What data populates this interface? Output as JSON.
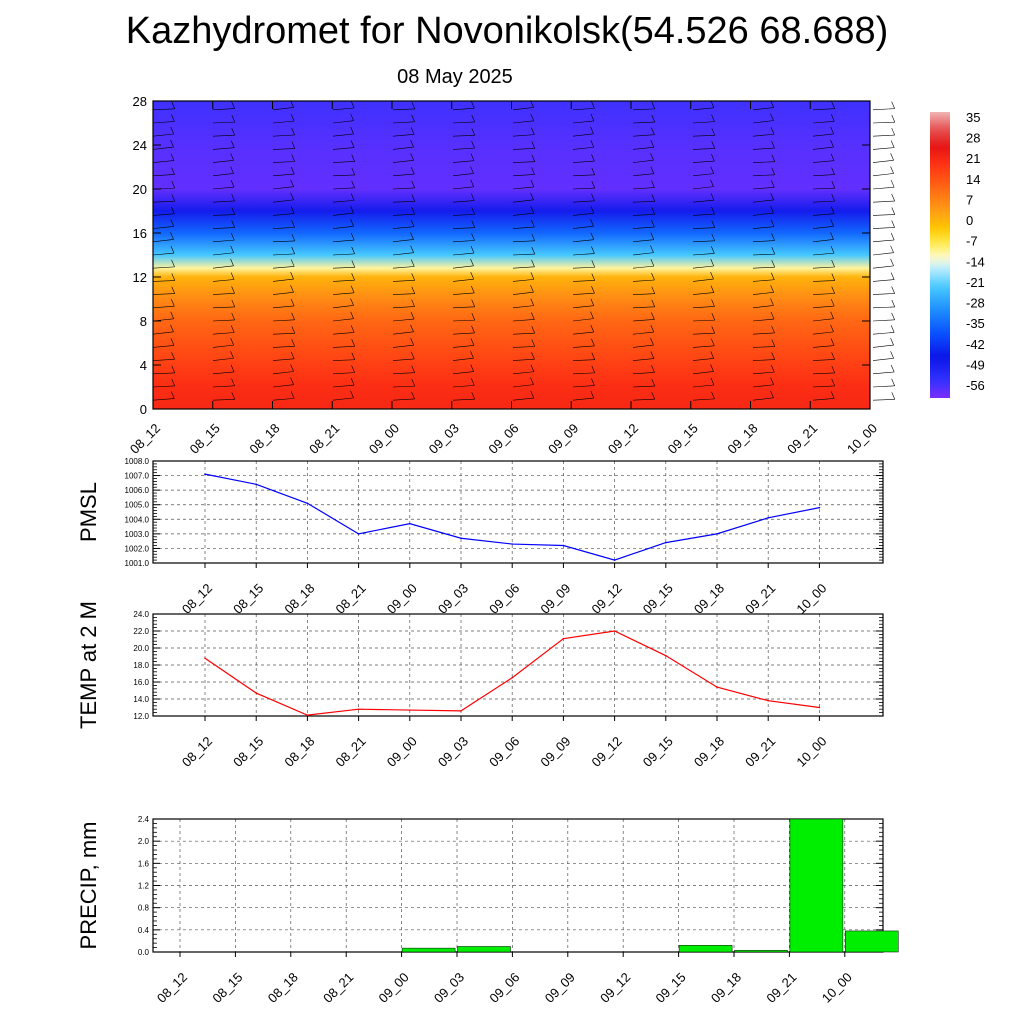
{
  "title": "Kazhydromet for Novonikolsk(54.526 68.688)",
  "subtitle": "08 May 2025",
  "chart_data": [
    {
      "type": "heatmap",
      "name": "cross-section",
      "x_labels": [
        "08_12",
        "08_15",
        "08_18",
        "08_21",
        "09_00",
        "09_03",
        "09_06",
        "09_09",
        "09_12",
        "09_15",
        "09_18",
        "09_21",
        "10_00"
      ],
      "y_ticks": [
        0,
        4,
        8,
        12,
        16,
        20,
        24,
        28
      ],
      "ylim": [
        0,
        28
      ],
      "colorbar_labels": [
        "35",
        "28",
        "21",
        "14",
        "7",
        "0",
        "-7",
        "-14",
        "-21",
        "-28",
        "-35",
        "-42",
        "-49",
        "-56"
      ],
      "colorbar_range": [
        -60,
        38
      ],
      "temperature_profile": [
        {
          "level": 0,
          "value": 22
        },
        {
          "level": 2,
          "value": 21
        },
        {
          "level": 4,
          "value": 18
        },
        {
          "level": 8,
          "value": 12
        },
        {
          "level": 10,
          "value": 7
        },
        {
          "level": 12,
          "value": 1
        },
        {
          "level": 12.8,
          "value": -10
        },
        {
          "level": 14,
          "value": -22
        },
        {
          "level": 16,
          "value": -35
        },
        {
          "level": 18,
          "value": -48
        },
        {
          "level": 20,
          "value": -58
        },
        {
          "level": 24,
          "value": -57
        },
        {
          "level": 28,
          "value": -55
        }
      ],
      "grid": false
    },
    {
      "type": "line",
      "name": "pmsl",
      "ylabel": "PMSL",
      "x": [
        "08_12",
        "08_15",
        "08_18",
        "08_21",
        "09_00",
        "09_03",
        "09_06",
        "09_09",
        "09_12",
        "09_15",
        "09_18",
        "09_21",
        "10_00"
      ],
      "values": [
        1007.1,
        1006.4,
        1005.1,
        1003.0,
        1003.7,
        1002.7,
        1002.3,
        1002.2,
        1001.2,
        1002.4,
        1003.0,
        1004.1,
        1004.8
      ],
      "ylim": [
        1001.0,
        1008.0
      ],
      "y_ticks": [
        "1001.0",
        "1002.0",
        "1003.0",
        "1004.0",
        "1005.0",
        "1006.0",
        "1007.0",
        "1008.0"
      ],
      "color": "#0000ff",
      "grid": true
    },
    {
      "type": "line",
      "name": "temp2m",
      "ylabel": "TEMP at 2 M",
      "x": [
        "08_12",
        "08_15",
        "08_18",
        "08_21",
        "09_00",
        "09_03",
        "09_06",
        "09_09",
        "09_12",
        "09_15",
        "09_18",
        "09_21",
        "10_00"
      ],
      "values": [
        18.8,
        14.7,
        12.1,
        12.8,
        12.7,
        12.6,
        16.5,
        21.1,
        22.0,
        19.1,
        15.4,
        13.8,
        13.0
      ],
      "ylim": [
        12.0,
        24.0
      ],
      "y_ticks": [
        "12.0",
        "14.0",
        "16.0",
        "18.0",
        "20.0",
        "22.0",
        "24.0"
      ],
      "color": "#ff0000",
      "grid": true
    },
    {
      "type": "bar",
      "name": "precip",
      "ylabel": "PRECIP, mm",
      "categories": [
        "08_12",
        "08_15",
        "08_18",
        "08_21",
        "09_00",
        "09_03",
        "09_06",
        "09_09",
        "09_12",
        "09_15",
        "09_18",
        "09_21",
        "10_00"
      ],
      "values": [
        0,
        0,
        0,
        0,
        0.07,
        0.1,
        0,
        0,
        0,
        0.12,
        0.03,
        2.4,
        0.38
      ],
      "ylim": [
        0,
        2.4
      ],
      "y_ticks": [
        "0.0",
        "0.4",
        "0.8",
        "1.2",
        "1.6",
        "2.0",
        "2.4"
      ],
      "color": "#00ee00",
      "grid": true
    }
  ]
}
